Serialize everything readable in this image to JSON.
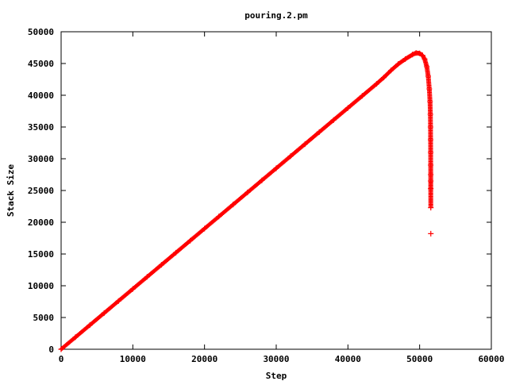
{
  "chart_data": {
    "type": "scatter",
    "title": "pouring.2.pm",
    "xlabel": "Step",
    "ylabel": "Stack Size",
    "xlim": [
      0,
      60000
    ],
    "ylim": [
      0,
      50000
    ],
    "xticks": [
      0,
      10000,
      20000,
      30000,
      40000,
      50000,
      60000
    ],
    "yticks": [
      0,
      5000,
      10000,
      15000,
      20000,
      25000,
      30000,
      35000,
      40000,
      45000,
      50000
    ],
    "grid": false,
    "legend": "none",
    "marker": "+",
    "color": "#ff0000",
    "series": [
      {
        "name": "",
        "points": [
          [
            0,
            0
          ],
          [
            2000,
            1900
          ],
          [
            4000,
            3800
          ],
          [
            6000,
            5700
          ],
          [
            8000,
            7600
          ],
          [
            10000,
            9500
          ],
          [
            12000,
            11400
          ],
          [
            14000,
            13300
          ],
          [
            16000,
            15200
          ],
          [
            18000,
            17100
          ],
          [
            20000,
            19000
          ],
          [
            22000,
            20900
          ],
          [
            24000,
            22800
          ],
          [
            26000,
            24700
          ],
          [
            28000,
            26600
          ],
          [
            30000,
            28500
          ],
          [
            32000,
            30400
          ],
          [
            34000,
            32300
          ],
          [
            36000,
            34200
          ],
          [
            38000,
            36100
          ],
          [
            40000,
            38000
          ],
          [
            42000,
            39900
          ],
          [
            44000,
            41800
          ],
          [
            45000,
            42800
          ],
          [
            46000,
            43900
          ],
          [
            47000,
            44900
          ],
          [
            48000,
            45700
          ],
          [
            49000,
            46400
          ],
          [
            49500,
            46650
          ],
          [
            50000,
            46600
          ],
          [
            50400,
            46300
          ],
          [
            50700,
            45700
          ],
          [
            51000,
            44500
          ],
          [
            51200,
            43000
          ],
          [
            51350,
            41000
          ],
          [
            51450,
            39000
          ],
          [
            51500,
            37000
          ],
          [
            51520,
            35000
          ],
          [
            51530,
            33000
          ],
          [
            51540,
            31000
          ],
          [
            51545,
            29000
          ],
          [
            51550,
            27500
          ],
          [
            51550,
            26500
          ],
          [
            51550,
            25300
          ],
          [
            51560,
            22300
          ],
          [
            51560,
            18200
          ]
        ]
      }
    ]
  }
}
